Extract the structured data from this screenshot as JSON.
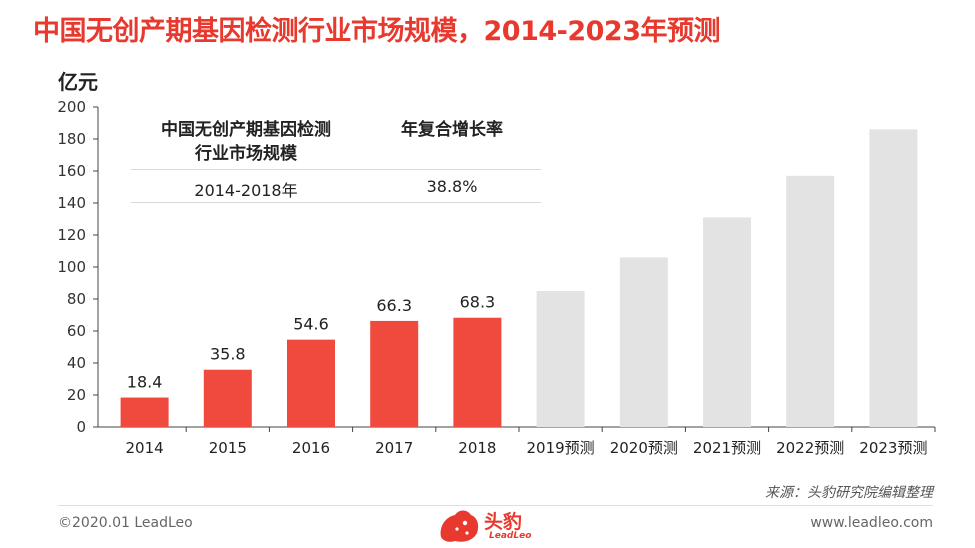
{
  "title": "中国无创产期基因检测行业市场规模，2014-2023年预测",
  "unit": "亿元",
  "summary": {
    "header_left_line1": "中国无创产期基因检测",
    "header_left_line2": "行业市场规模",
    "header_right": "年复合增长率",
    "period": "2014-2018年",
    "cagr": "38.8%"
  },
  "source": "来源：头豹研究院编辑整理",
  "footer": {
    "copyright": "©2020.01 LeadLeo",
    "website": "www.leadleo.com",
    "logo_text": "头豹",
    "logo_sub": "LeadLeo"
  },
  "colors": {
    "actual": "#f04a3e",
    "forecast": "#e3e3e3",
    "title": "#e8392e"
  },
  "chart_data": {
    "type": "bar",
    "categories": [
      "2014",
      "2015",
      "2016",
      "2017",
      "2018",
      "2019预测",
      "2020预测",
      "2021预测",
      "2022预测",
      "2023预测"
    ],
    "values": [
      18.4,
      35.8,
      54.6,
      66.3,
      68.3,
      85,
      106,
      131,
      157,
      186
    ],
    "data_labels": [
      "18.4",
      "35.8",
      "54.6",
      "66.3",
      "68.3",
      "",
      "",
      "",
      "",
      ""
    ],
    "series_type": [
      "actual",
      "actual",
      "actual",
      "actual",
      "actual",
      "forecast",
      "forecast",
      "forecast",
      "forecast",
      "forecast"
    ],
    "ylabel": "亿元",
    "ylim": [
      0,
      200
    ],
    "yticks": [
      0,
      20,
      40,
      60,
      80,
      100,
      120,
      140,
      160,
      180,
      200
    ],
    "grid": false,
    "legend": "none"
  }
}
